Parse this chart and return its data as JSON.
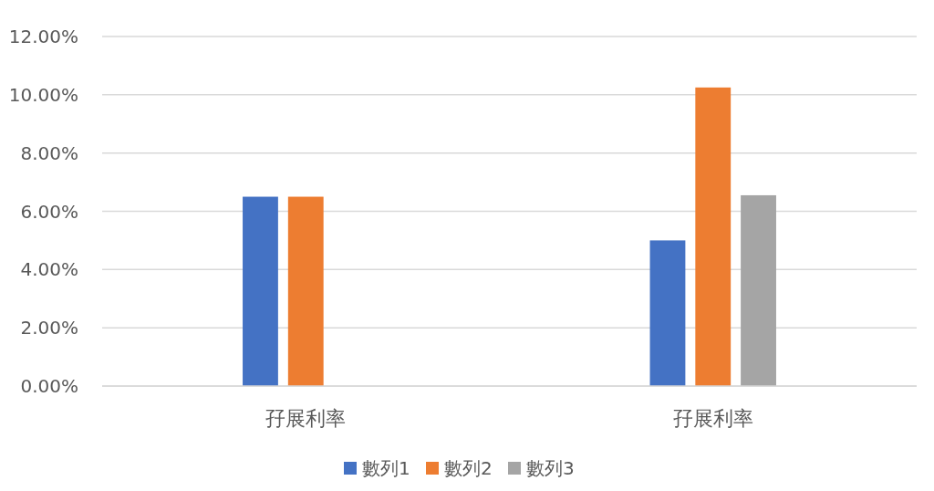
{
  "chart_data": {
    "type": "bar",
    "categories": [
      "孖展利率",
      "孖展利率"
    ],
    "series": [
      {
        "name": "數列1",
        "color": "#4472c4",
        "values": [
          6.5,
          5.0
        ]
      },
      {
        "name": "數列2",
        "color": "#ed7d31",
        "values": [
          6.5,
          10.25
        ]
      },
      {
        "name": "數列3",
        "color": "#a5a5a5",
        "values": [
          null,
          6.55
        ]
      }
    ],
    "ylim": [
      0,
      12
    ],
    "yticks": [
      {
        "value": 0,
        "label": "0.00%"
      },
      {
        "value": 2,
        "label": "2.00%"
      },
      {
        "value": 4,
        "label": "4.00%"
      },
      {
        "value": 6,
        "label": "6.00%"
      },
      {
        "value": 8,
        "label": "8.00%"
      },
      {
        "value": 10,
        "label": "10.00%"
      },
      {
        "value": 12,
        "label": "12.00%"
      }
    ],
    "grid": "y",
    "legend": "bottom"
  }
}
